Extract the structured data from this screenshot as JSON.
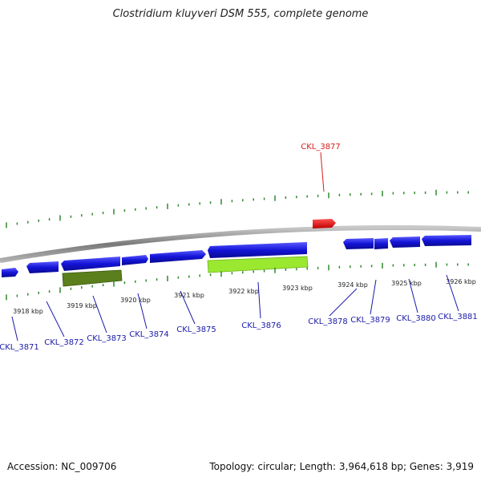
{
  "title": "Clostridium kluyveri DSM 555, complete genome",
  "footer": {
    "accession": "Accession: NC_009706",
    "summary": "Topology: circular; Length: 3,964,618 bp; Genes: 3,919"
  },
  "colors": {
    "backbone": "#8a8a8a",
    "tick": "#2e8b2e",
    "gene_forward": "#1f1fdc",
    "gene_reverse": "#1f1fdc",
    "gene_highlight": "#e81010",
    "feature_dark": "#5a7f1c",
    "feature_light": "#9be830",
    "label_default": "#1a1aa8",
    "label_highlight": "#d81e1e"
  },
  "scale": {
    "labels": [
      "3918 kbp",
      "3919 kbp",
      "3920 kbp",
      "3921 kbp",
      "3922 kbp",
      "3923 kbp",
      "3924 kbp",
      "3925 kbp",
      "3926 kbp"
    ]
  },
  "genes": [
    {
      "name": "CKL_3871"
    },
    {
      "name": "CKL_3872"
    },
    {
      "name": "CKL_3873"
    },
    {
      "name": "CKL_3874"
    },
    {
      "name": "CKL_3875"
    },
    {
      "name": "CKL_3876"
    },
    {
      "name": "CKL_3878"
    },
    {
      "name": "CKL_3879"
    },
    {
      "name": "CKL_3880"
    },
    {
      "name": "CKL_3881"
    },
    {
      "name": "CKL_3877"
    }
  ]
}
